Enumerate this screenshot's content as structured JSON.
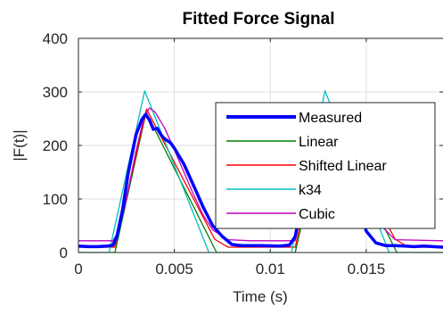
{
  "chart_data": {
    "type": "line",
    "title": "Fitted Force Signal",
    "xlabel": "Time (s)",
    "ylabel": "|F(t)|",
    "xlim": [
      0,
      0.019
    ],
    "ylim": [
      0,
      400
    ],
    "xticks": [
      0,
      0.005,
      0.01,
      0.015
    ],
    "xtick_labels": [
      "0",
      "0.005",
      "0.01",
      "0.015"
    ],
    "yticks": [
      0,
      100,
      200,
      300,
      400
    ],
    "ytick_labels": [
      "0",
      "100",
      "200",
      "300",
      "400"
    ],
    "grid": true,
    "legend_position": "right",
    "series": [
      {
        "name": "Measured",
        "color": "#0000ff",
        "x": [
          0,
          0.0005,
          0.001,
          0.0015,
          0.0018,
          0.002,
          0.0023,
          0.0026,
          0.003,
          0.0033,
          0.0035,
          0.0037,
          0.0039,
          0.0041,
          0.0043,
          0.0045,
          0.0048,
          0.005,
          0.0055,
          0.006,
          0.0065,
          0.007,
          0.0075,
          0.008,
          0.0085,
          0.009,
          0.0095,
          0.0105,
          0.011,
          0.0113,
          0.0118,
          0.012,
          0.0125,
          0.0129,
          0.0133,
          0.0138,
          0.0145,
          0.015,
          0.0155,
          0.016,
          0.0165,
          0.017,
          0.0175,
          0.018,
          0.019
        ],
        "values": [
          12,
          11,
          11,
          12,
          14,
          30,
          80,
          150,
          220,
          248,
          258,
          248,
          230,
          232,
          220,
          212,
          205,
          195,
          165,
          125,
          85,
          50,
          30,
          15,
          13,
          13,
          13,
          12,
          14,
          30,
          120,
          180,
          255,
          260,
          220,
          170,
          100,
          40,
          18,
          13,
          13,
          12,
          11,
          12,
          10
        ]
      },
      {
        "name": "Linear",
        "color": "#008000",
        "x": [
          0,
          0.0019,
          0.00353,
          0.0072,
          0.009,
          0.0113,
          0.01293,
          0.0166,
          0.019
        ],
        "values": [
          0,
          0,
          262,
          0,
          0,
          0,
          262,
          0,
          0
        ]
      },
      {
        "name": "Shifted Linear",
        "color": "#ff0000",
        "x": [
          0,
          0.0019,
          0.00355,
          0.0071,
          0.0078,
          0.009,
          0.0113,
          0.01295,
          0.0165,
          0.0172,
          0.019
        ],
        "values": [
          10,
          10,
          268,
          25,
          10,
          10,
          10,
          268,
          25,
          10,
          10
        ]
      },
      {
        "name": "k34",
        "color": "#00bfbf",
        "x": [
          0,
          0.0016,
          0.00345,
          0.0068,
          0.009,
          0.0111,
          0.01285,
          0.0162,
          0.019
        ],
        "values": [
          0,
          0,
          302,
          0,
          0,
          0,
          302,
          0,
          0
        ]
      },
      {
        "name": "Cubic",
        "color": "#bf00bf",
        "x": [
          0,
          0.0018,
          0.0021,
          0.0025,
          0.003,
          0.0034,
          0.0037,
          0.004,
          0.0045,
          0.005,
          0.0055,
          0.006,
          0.0065,
          0.007,
          0.0078,
          0.009,
          0.0113,
          0.0118,
          0.0124,
          0.0128,
          0.0131,
          0.0138,
          0.0145,
          0.015,
          0.0155,
          0.0165,
          0.019
        ],
        "values": [
          22,
          22,
          40,
          100,
          190,
          250,
          270,
          262,
          232,
          192,
          150,
          108,
          70,
          42,
          24,
          22,
          22,
          110,
          220,
          262,
          268,
          232,
          150,
          100,
          60,
          24,
          22
        ]
      }
    ]
  }
}
